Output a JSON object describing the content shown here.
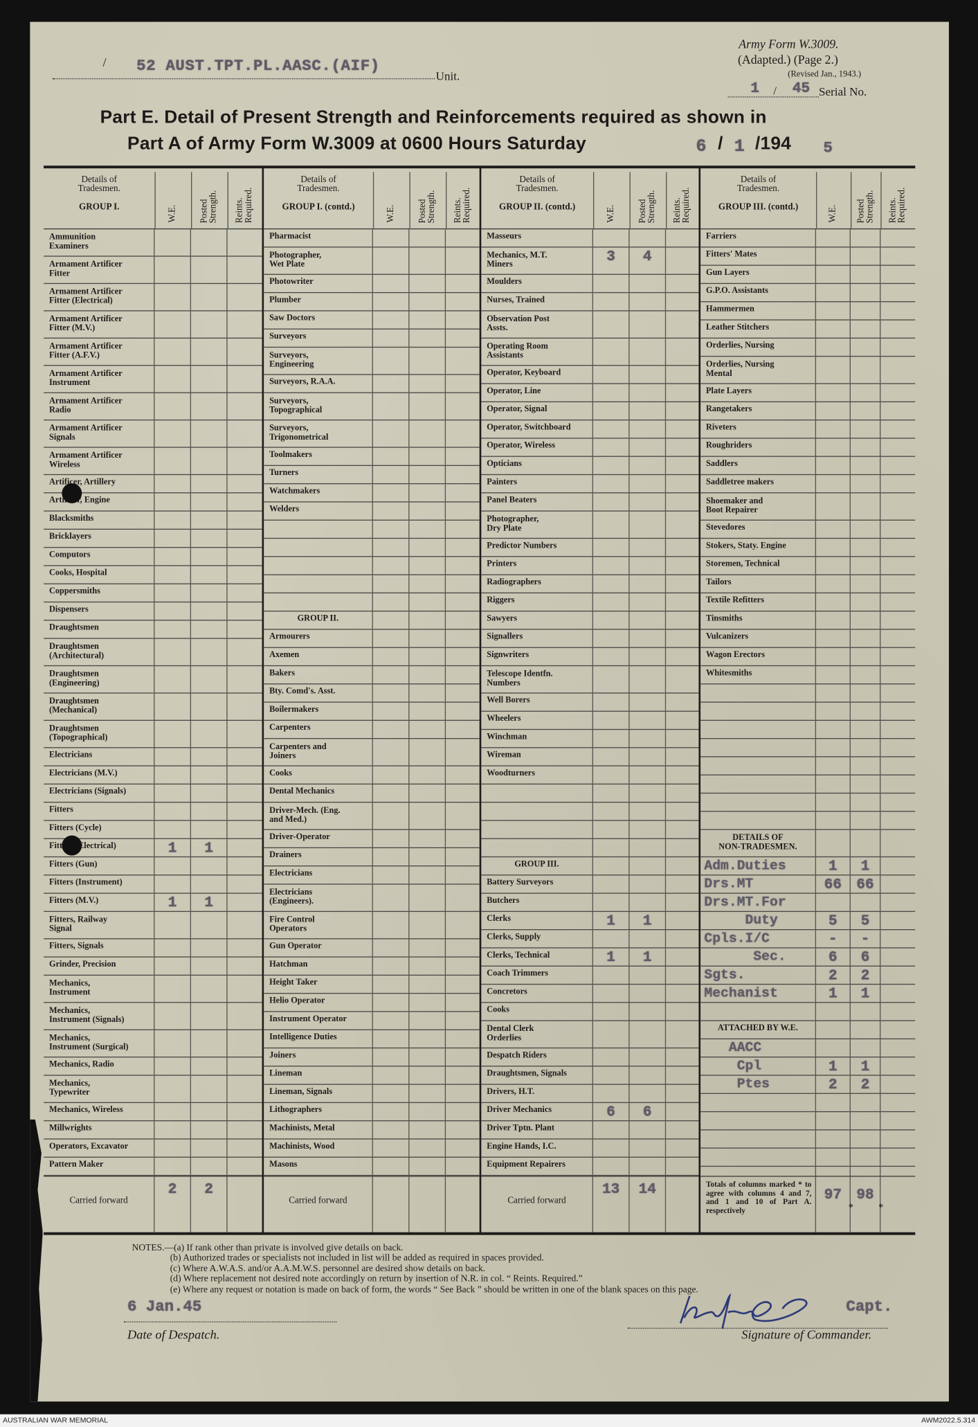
{
  "header": {
    "unit_value": "52 AUST.TPT.PL.AASC.(AIF)",
    "unit_label": "Unit.",
    "form_name": "Army Form W.3009.",
    "form_adapted": "(Adapted.) (Page 2.)",
    "form_revised": "(Revised Jan., 1943.)",
    "serial_value_1": "1",
    "serial_sep": "/",
    "serial_value_2": "45",
    "serial_label": "Serial No.",
    "title_line1": "Part E.  Detail of Present Strength and Reinforcements required as shown in",
    "title_line2": "Part A of Army Form W.3009 at 0600 Hours Saturday",
    "date_day": "6",
    "date_month": "1",
    "date_year_printed": "/194",
    "date_year_typed": "5"
  },
  "table_header": {
    "details": "Details of\nTradesmen.",
    "we": "W.E.",
    "posted": "Posted\nStrength.",
    "reints": "Reints.\nRequired.",
    "groups": [
      "GROUP I.",
      "GROUP I. (contd.)",
      "GROUP II. (contd.)",
      "GROUP III. (contd.)"
    ]
  },
  "columns": [
    {
      "sections": [
        {
          "entries": [
            {
              "label": "Ammunition\nExaminers"
            },
            {
              "label": "Armament Artificer\nFitter"
            },
            {
              "label": "Armament Artificer\nFitter (Electrical)"
            },
            {
              "label": "Armament Artificer\nFitter (M.V.)"
            },
            {
              "label": "Armament Artificer\nFitter (A.F.V.)"
            },
            {
              "label": "Armament Artificer\nInstrument"
            },
            {
              "label": "Armament Artificer\nRadio"
            },
            {
              "label": "Armament Artificer\nSignals"
            },
            {
              "label": "Armament Artificer\nWireless"
            },
            {
              "label": "Artificer, Artillery"
            },
            {
              "label": "Artificer, Engine"
            },
            {
              "label": "Blacksmiths"
            },
            {
              "label": "Bricklayers"
            },
            {
              "label": "Computors"
            },
            {
              "label": "Cooks, Hospital"
            },
            {
              "label": "Coppersmiths"
            },
            {
              "label": "Dispensers"
            },
            {
              "label": "Draughtsmen"
            },
            {
              "label": "Draughtsmen\n(Architectural)"
            },
            {
              "label": "Draughtsmen\n(Engineering)"
            },
            {
              "label": "Draughtsmen\n(Mechanical)"
            },
            {
              "label": "Draughtsmen\n(Topographical)"
            },
            {
              "label": "Electricians"
            },
            {
              "label": "Electricians (M.V.)"
            },
            {
              "label": "Electricians (Signals)"
            },
            {
              "label": "Fitters"
            },
            {
              "label": "Fitters (Cycle)"
            },
            {
              "label": "Fitters (Electrical)",
              "we": "1",
              "ps": "1"
            },
            {
              "label": "Fitters (Gun)"
            },
            {
              "label": "Fitters (Instrument)"
            },
            {
              "label": "Fitters (M.V.)",
              "we": "1",
              "ps": "1"
            },
            {
              "label": "Fitters, Railway\nSignal"
            },
            {
              "label": "Fitters, Signals"
            },
            {
              "label": "Grinder, Precision"
            },
            {
              "label": "Mechanics,\nInstrument"
            },
            {
              "label": "Mechanics,\nInstrument (Signals)"
            },
            {
              "label": "Mechanics,\nInstrument (Surgical)"
            },
            {
              "label": "Mechanics, Radio"
            },
            {
              "label": "Mechanics,\nTypewriter"
            },
            {
              "label": "Mechanics, Wireless"
            },
            {
              "label": "Millwrights"
            },
            {
              "label": "Operators, Excavator"
            },
            {
              "label": "Pattern Maker"
            }
          ]
        }
      ],
      "carried": {
        "label": "Carried forward",
        "we": "2",
        "ps": "2"
      }
    },
    {
      "sections": [
        {
          "entries": [
            {
              "label": "Pharmacist"
            },
            {
              "label": "Photographer,\nWet Plate"
            },
            {
              "label": "Photowriter"
            },
            {
              "label": "Plumber"
            },
            {
              "label": "Saw Doctors"
            },
            {
              "label": "Surveyors"
            },
            {
              "label": "Surveyors,\nEngineering"
            },
            {
              "label": "Surveyors, R.A.A."
            },
            {
              "label": "Surveyors,\nTopographical"
            },
            {
              "label": "Surveyors,\nTrigonometrical"
            },
            {
              "label": "Toolmakers"
            },
            {
              "label": "Turners"
            },
            {
              "label": "Watchmakers"
            },
            {
              "label": "Welders"
            }
          ]
        },
        {
          "header": "GROUP II.",
          "entries": [
            {
              "label": "Armourers"
            },
            {
              "label": "Axemen"
            },
            {
              "label": "Bakers"
            },
            {
              "label": "Bty. Comd's. Asst."
            },
            {
              "label": "Boilermakers"
            },
            {
              "label": "Carpenters"
            },
            {
              "label": "Carpenters and\nJoiners"
            },
            {
              "label": "Cooks"
            },
            {
              "label": "Dental Mechanics"
            },
            {
              "label": "Driver-Mech. (Eng.\nand Med.)"
            },
            {
              "label": "Driver-Operator"
            },
            {
              "label": "Drainers"
            },
            {
              "label": "Electricians"
            },
            {
              "label": "Electricians\n(Engineers)."
            },
            {
              "label": "Fire Control\nOperators"
            },
            {
              "label": "Gun Operator"
            },
            {
              "label": "Hatchman"
            },
            {
              "label": "Height Taker"
            },
            {
              "label": "Helio Operator"
            },
            {
              "label": "Instrument Operator"
            },
            {
              "label": "Intelligence Duties"
            },
            {
              "label": "Joiners"
            },
            {
              "label": "Lineman"
            },
            {
              "label": "Lineman, Signals"
            },
            {
              "label": "Lithographers"
            },
            {
              "label": "Machinists, Metal"
            },
            {
              "label": "Machinists, Wood"
            },
            {
              "label": "Masons"
            }
          ]
        }
      ],
      "carried": {
        "label": "Carried forward",
        "we": "",
        "ps": ""
      }
    },
    {
      "sections": [
        {
          "entries": [
            {
              "label": "Masseurs"
            },
            {
              "label": "Mechanics, M.T.\nMiners",
              "we": "3",
              "ps": "4"
            },
            {
              "label": "Moulders"
            },
            {
              "label": "Nurses, Trained"
            },
            {
              "label": "Observation Post\nAssts."
            },
            {
              "label": "Operating Room\nAssistants"
            },
            {
              "label": "Operator, Keyboard"
            },
            {
              "label": "Operator, Line"
            },
            {
              "label": "Operator, Signal"
            },
            {
              "label": "Operator, Switchboard"
            },
            {
              "label": "Operator, Wireless"
            },
            {
              "label": "Opticians"
            },
            {
              "label": "Painters"
            },
            {
              "label": "Panel Beaters"
            },
            {
              "label": "Photographer,\nDry Plate"
            },
            {
              "label": "Predictor Numbers"
            },
            {
              "label": "Printers"
            },
            {
              "label": "Radiographers"
            },
            {
              "label": "Riggers"
            },
            {
              "label": "Sawyers"
            },
            {
              "label": "Signallers"
            },
            {
              "label": "Signwriters"
            },
            {
              "label": "Telescope Identfn.\nNumbers"
            },
            {
              "label": "Well Borers"
            },
            {
              "label": "Wheelers"
            },
            {
              "label": "Winchman"
            },
            {
              "label": "Wireman"
            },
            {
              "label": "Woodturners"
            }
          ]
        },
        {
          "header": "GROUP III.",
          "entries": [
            {
              "label": "Battery Surveyors"
            },
            {
              "label": "Butchers"
            },
            {
              "label": "Clerks",
              "we": "1",
              "ps": "1"
            },
            {
              "label": "Clerks, Supply"
            },
            {
              "label": "Clerks, Technical",
              "we": "1",
              "ps": "1"
            },
            {
              "label": "Coach Trimmers"
            },
            {
              "label": "Concretors"
            },
            {
              "label": "Cooks"
            },
            {
              "label": "Dental Clerk\nOrderlies"
            },
            {
              "label": "Despatch Riders"
            },
            {
              "label": "Draughtsmen, Signals"
            },
            {
              "label": "Drivers, H.T."
            },
            {
              "label": "Driver Mechanics",
              "we": "6",
              "ps": "6"
            },
            {
              "label": "Driver Tptn. Plant"
            },
            {
              "label": "Engine Hands, I.C."
            },
            {
              "label": "Equipment Repairers"
            }
          ]
        }
      ],
      "carried": {
        "label": "Carried forward",
        "we": "13",
        "ps": "14"
      }
    },
    {
      "sections": [
        {
          "entries": [
            {
              "label": "Farriers"
            },
            {
              "label": "Fitters' Mates"
            },
            {
              "label": "Gun Layers"
            },
            {
              "label": "G.P.O. Assistants"
            },
            {
              "label": "Hammermen"
            },
            {
              "label": "Leather Stitchers"
            },
            {
              "label": "Orderlies, Nursing"
            },
            {
              "label": "Orderlies, Nursing\nMental"
            },
            {
              "label": "Plate Layers"
            },
            {
              "label": "Rangetakers"
            },
            {
              "label": "Riveters"
            },
            {
              "label": "Roughriders"
            },
            {
              "label": "Saddlers"
            },
            {
              "label": "Saddletree makers"
            },
            {
              "label": "Shoemaker and\nBoot Repairer"
            },
            {
              "label": "Stevedores"
            },
            {
              "label": "Stokers, Staty. Engine"
            },
            {
              "label": "Storemen, Technical"
            },
            {
              "label": "Tailors"
            },
            {
              "label": "Textile Refitters"
            },
            {
              "label": "Tinsmiths"
            },
            {
              "label": "Vulcanizers"
            },
            {
              "label": "Wagon Erectors"
            },
            {
              "label": "Whitesmiths"
            }
          ]
        },
        {
          "header": "DETAILS OF\nNON-TRADESMEN.",
          "entries": [
            {
              "label": "Adm.Duties",
              "we": "1",
              "ps": "1"
            },
            {
              "label": "Drs.MT",
              "we": "66",
              "ps": "66"
            },
            {
              "label": "Drs.MT.For"
            },
            {
              "label": "     Duty",
              "we": "5",
              "ps": "5"
            },
            {
              "label": "Cpls.I/C",
              "we": "-",
              "ps": "-"
            },
            {
              "label": "      Sec.",
              "we": "6",
              "ps": "6"
            },
            {
              "label": "Sgts.",
              "we": "2",
              "ps": "2"
            },
            {
              "label": "Mechanist",
              "we": "1",
              "ps": "1"
            }
          ]
        },
        {
          "header": "ATTACHED BY W.E.",
          "entries": [
            {
              "label": "   AACC"
            },
            {
              "label": "    Cpl",
              "we": "1",
              "ps": "1"
            },
            {
              "label": "    Ptes",
              "we": "2",
              "ps": "2"
            }
          ]
        }
      ],
      "carried": {
        "label": "Totals of columns marked * to agree with columns 4 and 7, and 1 and 10 of Part A. respectively",
        "we": "97",
        "ps": "98",
        "marker": "*"
      }
    }
  ],
  "notes": {
    "lead": "NOTES.—",
    "items": [
      "(a) If rank other than private is involved give details on back.",
      "(b) Authorized trades or specialists not included in list will be added as required in spaces provided.",
      "(c) Where A.W.A.S. and/or A.A.M.W.S. personnel are desired show details on back.",
      "(d) Where replacement not desired note accordingly on return by insertion of N.R. in col. “ Reints. Required.”",
      "(e) Where any request or notation is made on back of form, the words “ See Back ” should be written in one of the blank spaces on this page."
    ]
  },
  "footer": {
    "despatch_date": "6 Jan.45",
    "despatch_label": "Date of Despatch.",
    "rank": "Capt.",
    "signature_label": "Signature of Commander.",
    "signature_color": "#2d3a78"
  },
  "archive": {
    "left": "AUSTRALIAN WAR MEMORIAL",
    "right": "AWM2022.5.314"
  }
}
